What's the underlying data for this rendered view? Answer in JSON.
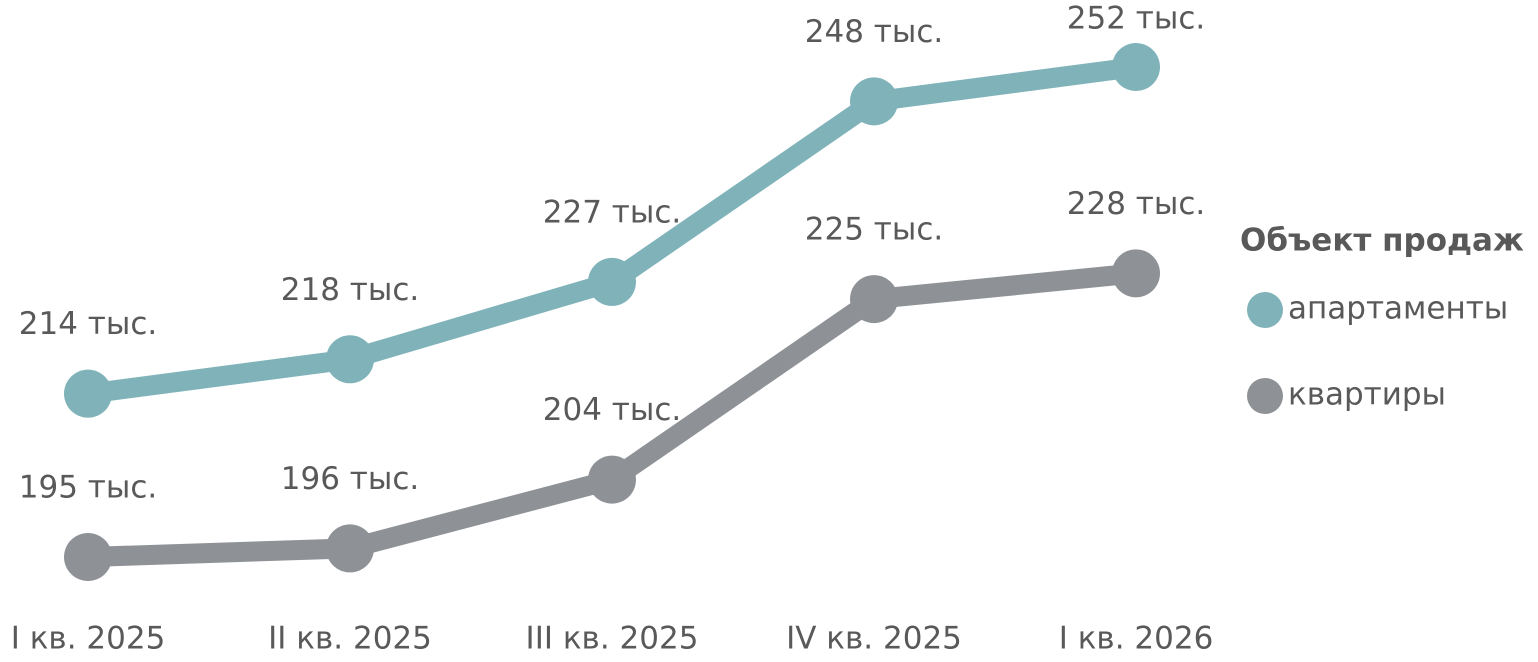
{
  "chart_data": {
    "type": "line",
    "categories": [
      "I кв. 2025",
      "II кв. 2025",
      "III кв. 2025",
      "IV кв. 2025",
      "I кв. 2026"
    ],
    "legend_title": "Объект продаж",
    "legend_position": "right",
    "series": [
      {
        "name": "апартаменты",
        "color": "#7fb3b9",
        "values": [
          214,
          218,
          227,
          248,
          252
        ],
        "value_labels": [
          "214 тыс.",
          "218 тыс.",
          "227 тыс.",
          "248 тыс.",
          "252 тыс."
        ]
      },
      {
        "name": "квартиры",
        "color": "#8e9196",
        "values": [
          195,
          196,
          204,
          225,
          228
        ],
        "value_labels": [
          "195 тыс.",
          "196 тыс.",
          "204 тыс.",
          "225 тыс.",
          "228 тыс."
        ]
      }
    ]
  }
}
